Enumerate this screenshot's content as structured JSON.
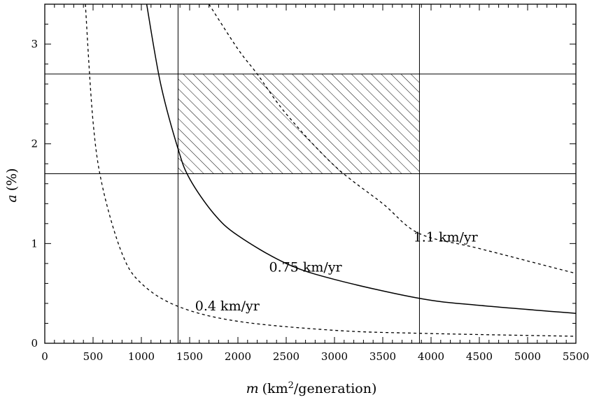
{
  "chart_data": {
    "type": "line",
    "title": "",
    "xlabel": {
      "var": "m",
      "unit_before": "(km",
      "unit_sup": "2",
      "unit_after": "/generation)"
    },
    "ylabel": {
      "var": "a",
      "unit": "(%)"
    },
    "xlim": [
      0,
      5500
    ],
    "ylim": [
      0,
      3.4
    ],
    "x_ticks": [
      0,
      500,
      1000,
      1500,
      2000,
      2500,
      3000,
      3500,
      4000,
      4500,
      5000,
      5500
    ],
    "x_tick_labels": [
      "0",
      "500",
      "1000",
      "1500",
      "2000",
      "2500",
      "3000",
      "3500",
      "4000",
      "4500",
      "5000",
      "5500"
    ],
    "y_ticks": [
      0,
      1,
      2,
      3
    ],
    "y_tick_labels": [
      "0",
      "1",
      "2",
      "3"
    ],
    "reference_lines": {
      "vertical_x": [
        1380,
        3880
      ],
      "horizontal_y": [
        1.7,
        2.7
      ]
    },
    "shaded_region": {
      "x": [
        1380,
        3880
      ],
      "y": [
        1.7,
        2.7
      ],
      "pattern": "diagonal hatch"
    },
    "series": [
      {
        "name": "0.4 km/yr",
        "style": "dashed",
        "x": [
          420,
          500,
          600,
          800,
          1000,
          1380,
          2000,
          3000,
          3880,
          5500
        ],
        "y": [
          3.4,
          2.22,
          1.56,
          0.9,
          0.6,
          0.37,
          0.22,
          0.13,
          0.1,
          0.07
        ]
      },
      {
        "name": "0.75 km/yr",
        "style": "solid",
        "x": [
          1055,
          1200,
          1380,
          1500,
          1750,
          2000,
          2500,
          3000,
          3880,
          4500,
          5500
        ],
        "y": [
          3.4,
          2.6,
          1.95,
          1.65,
          1.3,
          1.08,
          0.8,
          0.64,
          0.45,
          0.38,
          0.3
        ]
      },
      {
        "name": "1.1 km/yr",
        "style": "dashed",
        "x": [
          1700,
          2000,
          2200,
          2500,
          3000,
          3500,
          3880,
          4500,
          5500
        ],
        "y": [
          3.4,
          2.95,
          2.7,
          2.3,
          1.78,
          1.4,
          1.1,
          0.95,
          0.7
        ]
      }
    ],
    "annotations": [
      {
        "text": "0.4 km/yr",
        "x": 1890,
        "y": 0.33
      },
      {
        "text": "0.75 km/yr",
        "x": 2700,
        "y": 0.72
      },
      {
        "text": "1.1 km/yr",
        "x": 4150,
        "y": 1.02
      }
    ]
  }
}
